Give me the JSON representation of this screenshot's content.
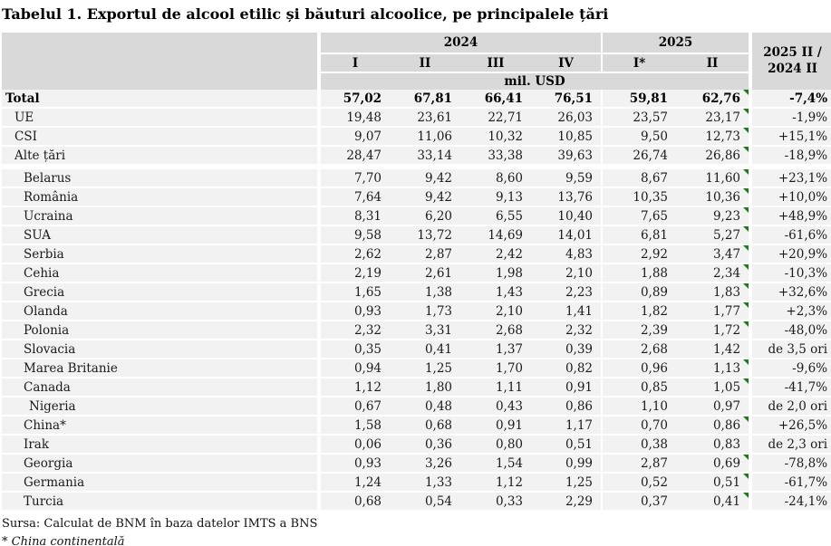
{
  "title": "Tabelul 1. Exportul de alcool etilic și băuturi alcoolice, pe principalele țări",
  "table": {
    "header": {
      "y2024": "2024",
      "y2025": "2025",
      "ratio_line1": "2025 II /",
      "ratio_line2": "2024 II",
      "quarters": [
        "I",
        "II",
        "III",
        "IV",
        "I*",
        "II"
      ],
      "unit": "mil. USD"
    },
    "rows": [
      {
        "label": "Total",
        "indent": 0,
        "bold": true,
        "group_end": false,
        "values": [
          "57,02",
          "67,81",
          "66,41",
          "76,51",
          "59,81",
          "62,76"
        ],
        "change": "-7,4%",
        "marker": true
      },
      {
        "label": "UE",
        "indent": 1,
        "bold": false,
        "group_end": false,
        "values": [
          "19,48",
          "23,61",
          "22,71",
          "26,03",
          "23,57",
          "23,17"
        ],
        "change": "-1,9%",
        "marker": true
      },
      {
        "label": "CSI",
        "indent": 1,
        "bold": false,
        "group_end": false,
        "values": [
          "9,07",
          "11,06",
          "10,32",
          "10,85",
          "9,50",
          "12,73"
        ],
        "change": "+15,1%",
        "marker": true
      },
      {
        "label": "Alte țări",
        "indent": 1,
        "bold": false,
        "group_end": true,
        "values": [
          "28,47",
          "33,14",
          "33,38",
          "39,63",
          "26,74",
          "26,86"
        ],
        "change": "-18,9%",
        "marker": true
      },
      {
        "label": "Belarus",
        "indent": 2,
        "bold": false,
        "group_end": false,
        "values": [
          "7,70",
          "9,42",
          "8,60",
          "9,59",
          "8,67",
          "11,60"
        ],
        "change": "+23,1%",
        "marker": true
      },
      {
        "label": "România",
        "indent": 2,
        "bold": false,
        "group_end": false,
        "values": [
          "7,64",
          "9,42",
          "9,13",
          "13,76",
          "10,35",
          "10,36"
        ],
        "change": "+10,0%",
        "marker": true
      },
      {
        "label": "Ucraina",
        "indent": 2,
        "bold": false,
        "group_end": false,
        "values": [
          "8,31",
          "6,20",
          "6,55",
          "10,40",
          "7,65",
          "9,23"
        ],
        "change": "+48,9%",
        "marker": true
      },
      {
        "label": "SUA",
        "indent": 2,
        "bold": false,
        "group_end": false,
        "values": [
          "9,58",
          "13,72",
          "14,69",
          "14,01",
          "6,81",
          "5,27"
        ],
        "change": "-61,6%",
        "marker": true
      },
      {
        "label": "Serbia",
        "indent": 2,
        "bold": false,
        "group_end": false,
        "values": [
          "2,62",
          "2,87",
          "2,42",
          "4,83",
          "2,92",
          "3,47"
        ],
        "change": "+20,9%",
        "marker": true
      },
      {
        "label": "Cehia",
        "indent": 2,
        "bold": false,
        "group_end": false,
        "values": [
          "2,19",
          "2,61",
          "1,98",
          "2,10",
          "1,88",
          "2,34"
        ],
        "change": "-10,3%",
        "marker": true
      },
      {
        "label": "Grecia",
        "indent": 2,
        "bold": false,
        "group_end": false,
        "values": [
          "1,65",
          "1,38",
          "1,43",
          "2,23",
          "0,89",
          "1,83"
        ],
        "change": "+32,6%",
        "marker": true
      },
      {
        "label": "Olanda",
        "indent": 2,
        "bold": false,
        "group_end": false,
        "values": [
          "0,93",
          "1,73",
          "2,10",
          "1,41",
          "1,82",
          "1,77"
        ],
        "change": "+2,3%",
        "marker": true
      },
      {
        "label": "Polonia",
        "indent": 2,
        "bold": false,
        "group_end": false,
        "values": [
          "2,32",
          "3,31",
          "2,68",
          "2,32",
          "2,39",
          "1,72"
        ],
        "change": "-48,0%",
        "marker": true
      },
      {
        "label": "Slovacia",
        "indent": 2,
        "bold": false,
        "group_end": false,
        "values": [
          "0,35",
          "0,41",
          "1,37",
          "0,39",
          "2,68",
          "1,42"
        ],
        "change": "de 3,5 ori",
        "marker": false
      },
      {
        "label": "Marea Britanie",
        "indent": 2,
        "bold": false,
        "group_end": false,
        "values": [
          "0,94",
          "1,25",
          "1,70",
          "0,82",
          "0,96",
          "1,13"
        ],
        "change": "-9,6%",
        "marker": true
      },
      {
        "label": "Canada",
        "indent": 2,
        "bold": false,
        "group_end": false,
        "values": [
          "1,12",
          "1,80",
          "1,11",
          "0,91",
          "0,85",
          "1,05"
        ],
        "change": "-41,7%",
        "marker": true
      },
      {
        "label": "Nigeria",
        "indent": 3,
        "bold": false,
        "group_end": false,
        "values": [
          "0,67",
          "0,48",
          "0,43",
          "0,86",
          "1,10",
          "0,97"
        ],
        "change": "de 2,0 ori",
        "marker": false
      },
      {
        "label": "China*",
        "indent": 2,
        "bold": false,
        "group_end": false,
        "values": [
          "1,58",
          "0,68",
          "0,91",
          "1,17",
          "0,70",
          "0,86"
        ],
        "change": "+26,5%",
        "marker": true
      },
      {
        "label": "Irak",
        "indent": 2,
        "bold": false,
        "group_end": false,
        "values": [
          "0,06",
          "0,36",
          "0,80",
          "0,51",
          "0,38",
          "0,83"
        ],
        "change": "de 2,3 ori",
        "marker": false
      },
      {
        "label": "Georgia",
        "indent": 2,
        "bold": false,
        "group_end": false,
        "values": [
          "0,93",
          "3,26",
          "1,54",
          "0,99",
          "2,87",
          "0,69"
        ],
        "change": "-78,8%",
        "marker": true
      },
      {
        "label": "Germania",
        "indent": 2,
        "bold": false,
        "group_end": false,
        "values": [
          "1,24",
          "1,33",
          "1,12",
          "1,25",
          "0,52",
          "0,51"
        ],
        "change": "-61,7%",
        "marker": true
      },
      {
        "label": "Turcia",
        "indent": 2,
        "bold": false,
        "group_end": false,
        "values": [
          "0,68",
          "0,54",
          "0,33",
          "2,29",
          "0,37",
          "0,41"
        ],
        "change": "-24,1%",
        "marker": true
      }
    ]
  },
  "footer": {
    "source": "Sursa: Calculat de BNM în baza datelor IMTS a BNS",
    "note": "* China continentală"
  },
  "colors": {
    "header_bg": "#d9d9d9",
    "row_bg": "#f2f2f2",
    "separator": "#ffffff",
    "marker_green": "#1e7a1e"
  }
}
